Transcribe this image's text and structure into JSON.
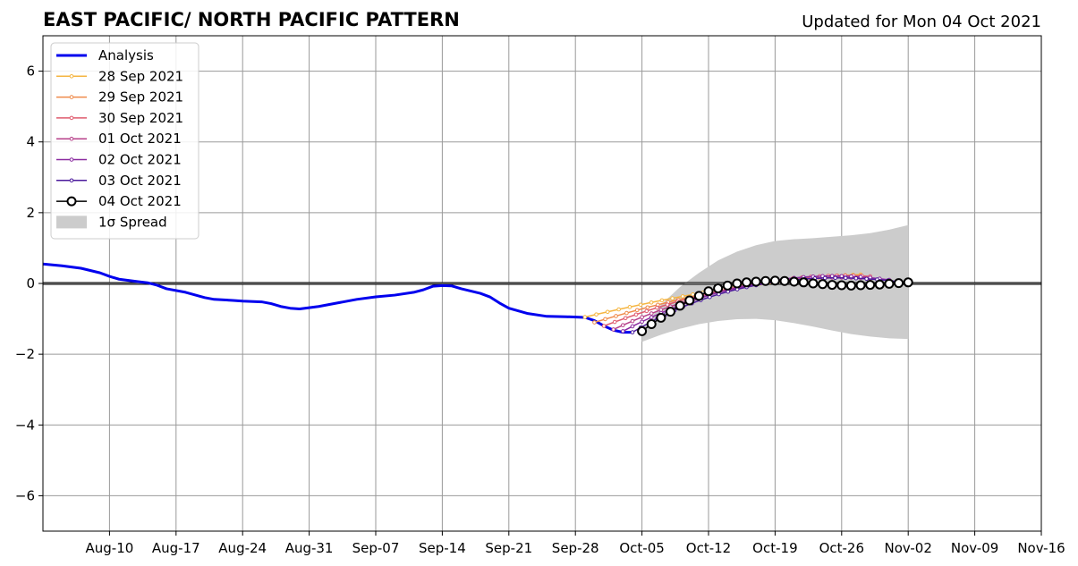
{
  "chart_data": {
    "type": "line",
    "title": "EAST PACIFIC/ NORTH PACIFIC PATTERN",
    "updated_label": "Updated for Mon 04 Oct 2021",
    "xlabel": "",
    "ylabel": "",
    "x_range": [
      "2021-08-03",
      "2021-11-16"
    ],
    "ylim": [
      -7,
      7
    ],
    "x_ticks": [
      {
        "date": "2021-08-10",
        "label": "Aug-10"
      },
      {
        "date": "2021-08-17",
        "label": "Aug-17"
      },
      {
        "date": "2021-08-24",
        "label": "Aug-24"
      },
      {
        "date": "2021-08-31",
        "label": "Aug-31"
      },
      {
        "date": "2021-09-07",
        "label": "Sep-07"
      },
      {
        "date": "2021-09-14",
        "label": "Sep-14"
      },
      {
        "date": "2021-09-21",
        "label": "Sep-21"
      },
      {
        "date": "2021-09-28",
        "label": "Sep-28"
      },
      {
        "date": "2021-10-05",
        "label": "Oct-05"
      },
      {
        "date": "2021-10-12",
        "label": "Oct-12"
      },
      {
        "date": "2021-10-19",
        "label": "Oct-19"
      },
      {
        "date": "2021-10-26",
        "label": "Oct-26"
      },
      {
        "date": "2021-11-02",
        "label": "Nov-02"
      },
      {
        "date": "2021-11-09",
        "label": "Nov-09"
      },
      {
        "date": "2021-11-16",
        "label": "Nov-16"
      }
    ],
    "y_ticks": [
      {
        "value": -6,
        "label": "−6"
      },
      {
        "value": -4,
        "label": "−4"
      },
      {
        "value": -2,
        "label": "−2"
      },
      {
        "value": 0,
        "label": "0"
      },
      {
        "value": 2,
        "label": "2"
      },
      {
        "value": 4,
        "label": "4"
      },
      {
        "value": 6,
        "label": "6"
      }
    ],
    "grid": true,
    "legend_position": "top-left",
    "analysis": {
      "name": "Analysis",
      "color": "#0000ee",
      "points": [
        [
          "2021-08-03",
          0.55
        ],
        [
          "2021-08-05",
          0.5
        ],
        [
          "2021-08-07",
          0.43
        ],
        [
          "2021-08-09",
          0.3
        ],
        [
          "2021-08-10",
          0.2
        ],
        [
          "2021-08-11",
          0.12
        ],
        [
          "2021-08-13",
          0.05
        ],
        [
          "2021-08-14",
          0.02
        ],
        [
          "2021-08-15",
          -0.05
        ],
        [
          "2021-08-16",
          -0.15
        ],
        [
          "2021-08-18",
          -0.25
        ],
        [
          "2021-08-20",
          -0.4
        ],
        [
          "2021-08-21",
          -0.45
        ],
        [
          "2021-08-23",
          -0.48
        ],
        [
          "2021-08-24",
          -0.5
        ],
        [
          "2021-08-26",
          -0.52
        ],
        [
          "2021-08-27",
          -0.57
        ],
        [
          "2021-08-28",
          -0.65
        ],
        [
          "2021-08-29",
          -0.7
        ],
        [
          "2021-08-30",
          -0.72
        ],
        [
          "2021-09-01",
          -0.65
        ],
        [
          "2021-09-03",
          -0.55
        ],
        [
          "2021-09-05",
          -0.45
        ],
        [
          "2021-09-07",
          -0.38
        ],
        [
          "2021-09-09",
          -0.33
        ],
        [
          "2021-09-11",
          -0.25
        ],
        [
          "2021-09-12",
          -0.18
        ],
        [
          "2021-09-13",
          -0.08
        ],
        [
          "2021-09-14",
          -0.06
        ],
        [
          "2021-09-15",
          -0.07
        ],
        [
          "2021-09-16",
          -0.15
        ],
        [
          "2021-09-18",
          -0.28
        ],
        [
          "2021-09-19",
          -0.38
        ],
        [
          "2021-09-20",
          -0.55
        ],
        [
          "2021-09-21",
          -0.7
        ],
        [
          "2021-09-23",
          -0.85
        ],
        [
          "2021-09-25",
          -0.93
        ],
        [
          "2021-09-27",
          -0.94
        ],
        [
          "2021-09-29",
          -0.96
        ],
        [
          "2021-09-30",
          -1.05
        ],
        [
          "2021-10-01",
          -1.2
        ],
        [
          "2021-10-02",
          -1.32
        ],
        [
          "2021-10-03",
          -1.38
        ],
        [
          "2021-10-04",
          -1.38
        ]
      ]
    },
    "forecast_series": [
      {
        "name": "28 Sep 2021",
        "color": "#f5b642",
        "start": [
          "2021-09-29",
          -0.95
        ],
        "mid": [
          "2021-10-15",
          -0.1
        ],
        "end": [
          "2021-10-28",
          0.25
        ],
        "n": 30
      },
      {
        "name": "29 Sep 2021",
        "color": "#ef8a4a",
        "start": [
          "2021-09-30",
          -1.1
        ],
        "mid": [
          "2021-10-15",
          -0.12
        ],
        "end": [
          "2021-10-28",
          0.22
        ],
        "n": 29
      },
      {
        "name": "30 Sep 2021",
        "color": "#df5b6e",
        "start": [
          "2021-10-01",
          -1.2
        ],
        "mid": [
          "2021-10-16",
          -0.05
        ],
        "end": [
          "2021-10-29",
          0.2
        ],
        "n": 29
      },
      {
        "name": "01 Oct 2021",
        "color": "#b7408a",
        "start": [
          "2021-10-02",
          -1.3
        ],
        "mid": [
          "2021-10-16",
          -0.08
        ],
        "end": [
          "2021-10-30",
          0.12
        ],
        "n": 29
      },
      {
        "name": "02 Oct 2021",
        "color": "#8a2aa0",
        "start": [
          "2021-10-03",
          -1.35
        ],
        "mid": [
          "2021-10-17",
          0.0
        ],
        "end": [
          "2021-10-31",
          0.1
        ],
        "n": 29
      },
      {
        "name": "03 Oct 2021",
        "color": "#4b1a9c",
        "start": [
          "2021-10-04",
          -1.38
        ],
        "mid": [
          "2021-10-17",
          -0.05
        ],
        "end": [
          "2021-11-01",
          0.05
        ],
        "n": 29
      }
    ],
    "current_forecast": {
      "name": "04 Oct 2021",
      "color": "#000000",
      "points": [
        [
          "2021-10-05",
          -1.35
        ],
        [
          "2021-10-06",
          -1.15
        ],
        [
          "2021-10-07",
          -0.97
        ],
        [
          "2021-10-08",
          -0.8
        ],
        [
          "2021-10-09",
          -0.63
        ],
        [
          "2021-10-10",
          -0.48
        ],
        [
          "2021-10-11",
          -0.35
        ],
        [
          "2021-10-12",
          -0.22
        ],
        [
          "2021-10-13",
          -0.14
        ],
        [
          "2021-10-14",
          -0.06
        ],
        [
          "2021-10-15",
          0.0
        ],
        [
          "2021-10-16",
          0.03
        ],
        [
          "2021-10-17",
          0.05
        ],
        [
          "2021-10-18",
          0.07
        ],
        [
          "2021-10-19",
          0.08
        ],
        [
          "2021-10-20",
          0.07
        ],
        [
          "2021-10-21",
          0.05
        ],
        [
          "2021-10-22",
          0.03
        ],
        [
          "2021-10-23",
          0.0
        ],
        [
          "2021-10-24",
          -0.02
        ],
        [
          "2021-10-25",
          -0.04
        ],
        [
          "2021-10-26",
          -0.05
        ],
        [
          "2021-10-27",
          -0.06
        ],
        [
          "2021-10-28",
          -0.05
        ],
        [
          "2021-10-29",
          -0.04
        ],
        [
          "2021-10-30",
          -0.03
        ],
        [
          "2021-10-31",
          -0.01
        ],
        [
          "2021-11-01",
          0.01
        ],
        [
          "2021-11-02",
          0.03
        ]
      ]
    },
    "spread": {
      "name": "1σ Spread",
      "color": "#cccccc",
      "upper": [
        [
          "2021-10-05",
          -1.3
        ],
        [
          "2021-10-07",
          -0.6
        ],
        [
          "2021-10-09",
          -0.1
        ],
        [
          "2021-10-11",
          0.3
        ],
        [
          "2021-10-13",
          0.65
        ],
        [
          "2021-10-15",
          0.9
        ],
        [
          "2021-10-17",
          1.08
        ],
        [
          "2021-10-19",
          1.2
        ],
        [
          "2021-10-21",
          1.25
        ],
        [
          "2021-10-23",
          1.28
        ],
        [
          "2021-10-25",
          1.32
        ],
        [
          "2021-10-27",
          1.36
        ],
        [
          "2021-10-29",
          1.42
        ],
        [
          "2021-10-31",
          1.52
        ],
        [
          "2021-11-02",
          1.65
        ]
      ],
      "lower": [
        [
          "2021-10-05",
          -1.65
        ],
        [
          "2021-10-07",
          -1.45
        ],
        [
          "2021-10-09",
          -1.28
        ],
        [
          "2021-10-11",
          -1.15
        ],
        [
          "2021-10-13",
          -1.06
        ],
        [
          "2021-10-15",
          -1.01
        ],
        [
          "2021-10-17",
          -1.0
        ],
        [
          "2021-10-19",
          -1.04
        ],
        [
          "2021-10-21",
          -1.12
        ],
        [
          "2021-10-23",
          -1.22
        ],
        [
          "2021-10-25",
          -1.33
        ],
        [
          "2021-10-27",
          -1.43
        ],
        [
          "2021-10-29",
          -1.5
        ],
        [
          "2021-10-31",
          -1.55
        ],
        [
          "2021-11-02",
          -1.57
        ]
      ]
    },
    "zero_line": 0,
    "colors": {
      "grid": "#9a9a9a",
      "axis": "#000000",
      "legend_border": "#cccccc"
    }
  }
}
